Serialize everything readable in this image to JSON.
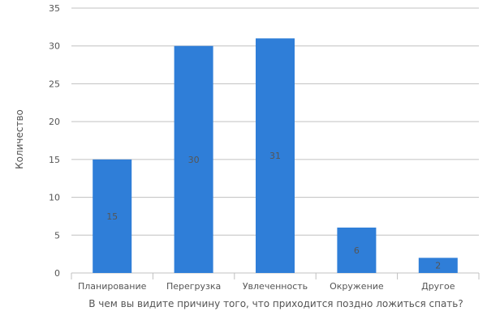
{
  "chart_data": {
    "type": "bar",
    "categories": [
      "Планирование",
      "Перегрузка",
      "Увлеченность",
      "Окружение",
      "Другое"
    ],
    "values": [
      15,
      30,
      31,
      6,
      2
    ],
    "data_labels": [
      "15",
      "30",
      "31",
      "6",
      "2"
    ],
    "title": "",
    "xlabel": "В чем вы видите причину того, что приходится поздно ложиться спать?",
    "ylabel": "Количество",
    "ylim": [
      0,
      35
    ],
    "yticks": [
      "0",
      "5",
      "10",
      "15",
      "20",
      "25",
      "30",
      "35"
    ],
    "grid": true,
    "legend": "none",
    "bar_color": "#2f7ed8",
    "grid_color": "#c0c0c0"
  }
}
